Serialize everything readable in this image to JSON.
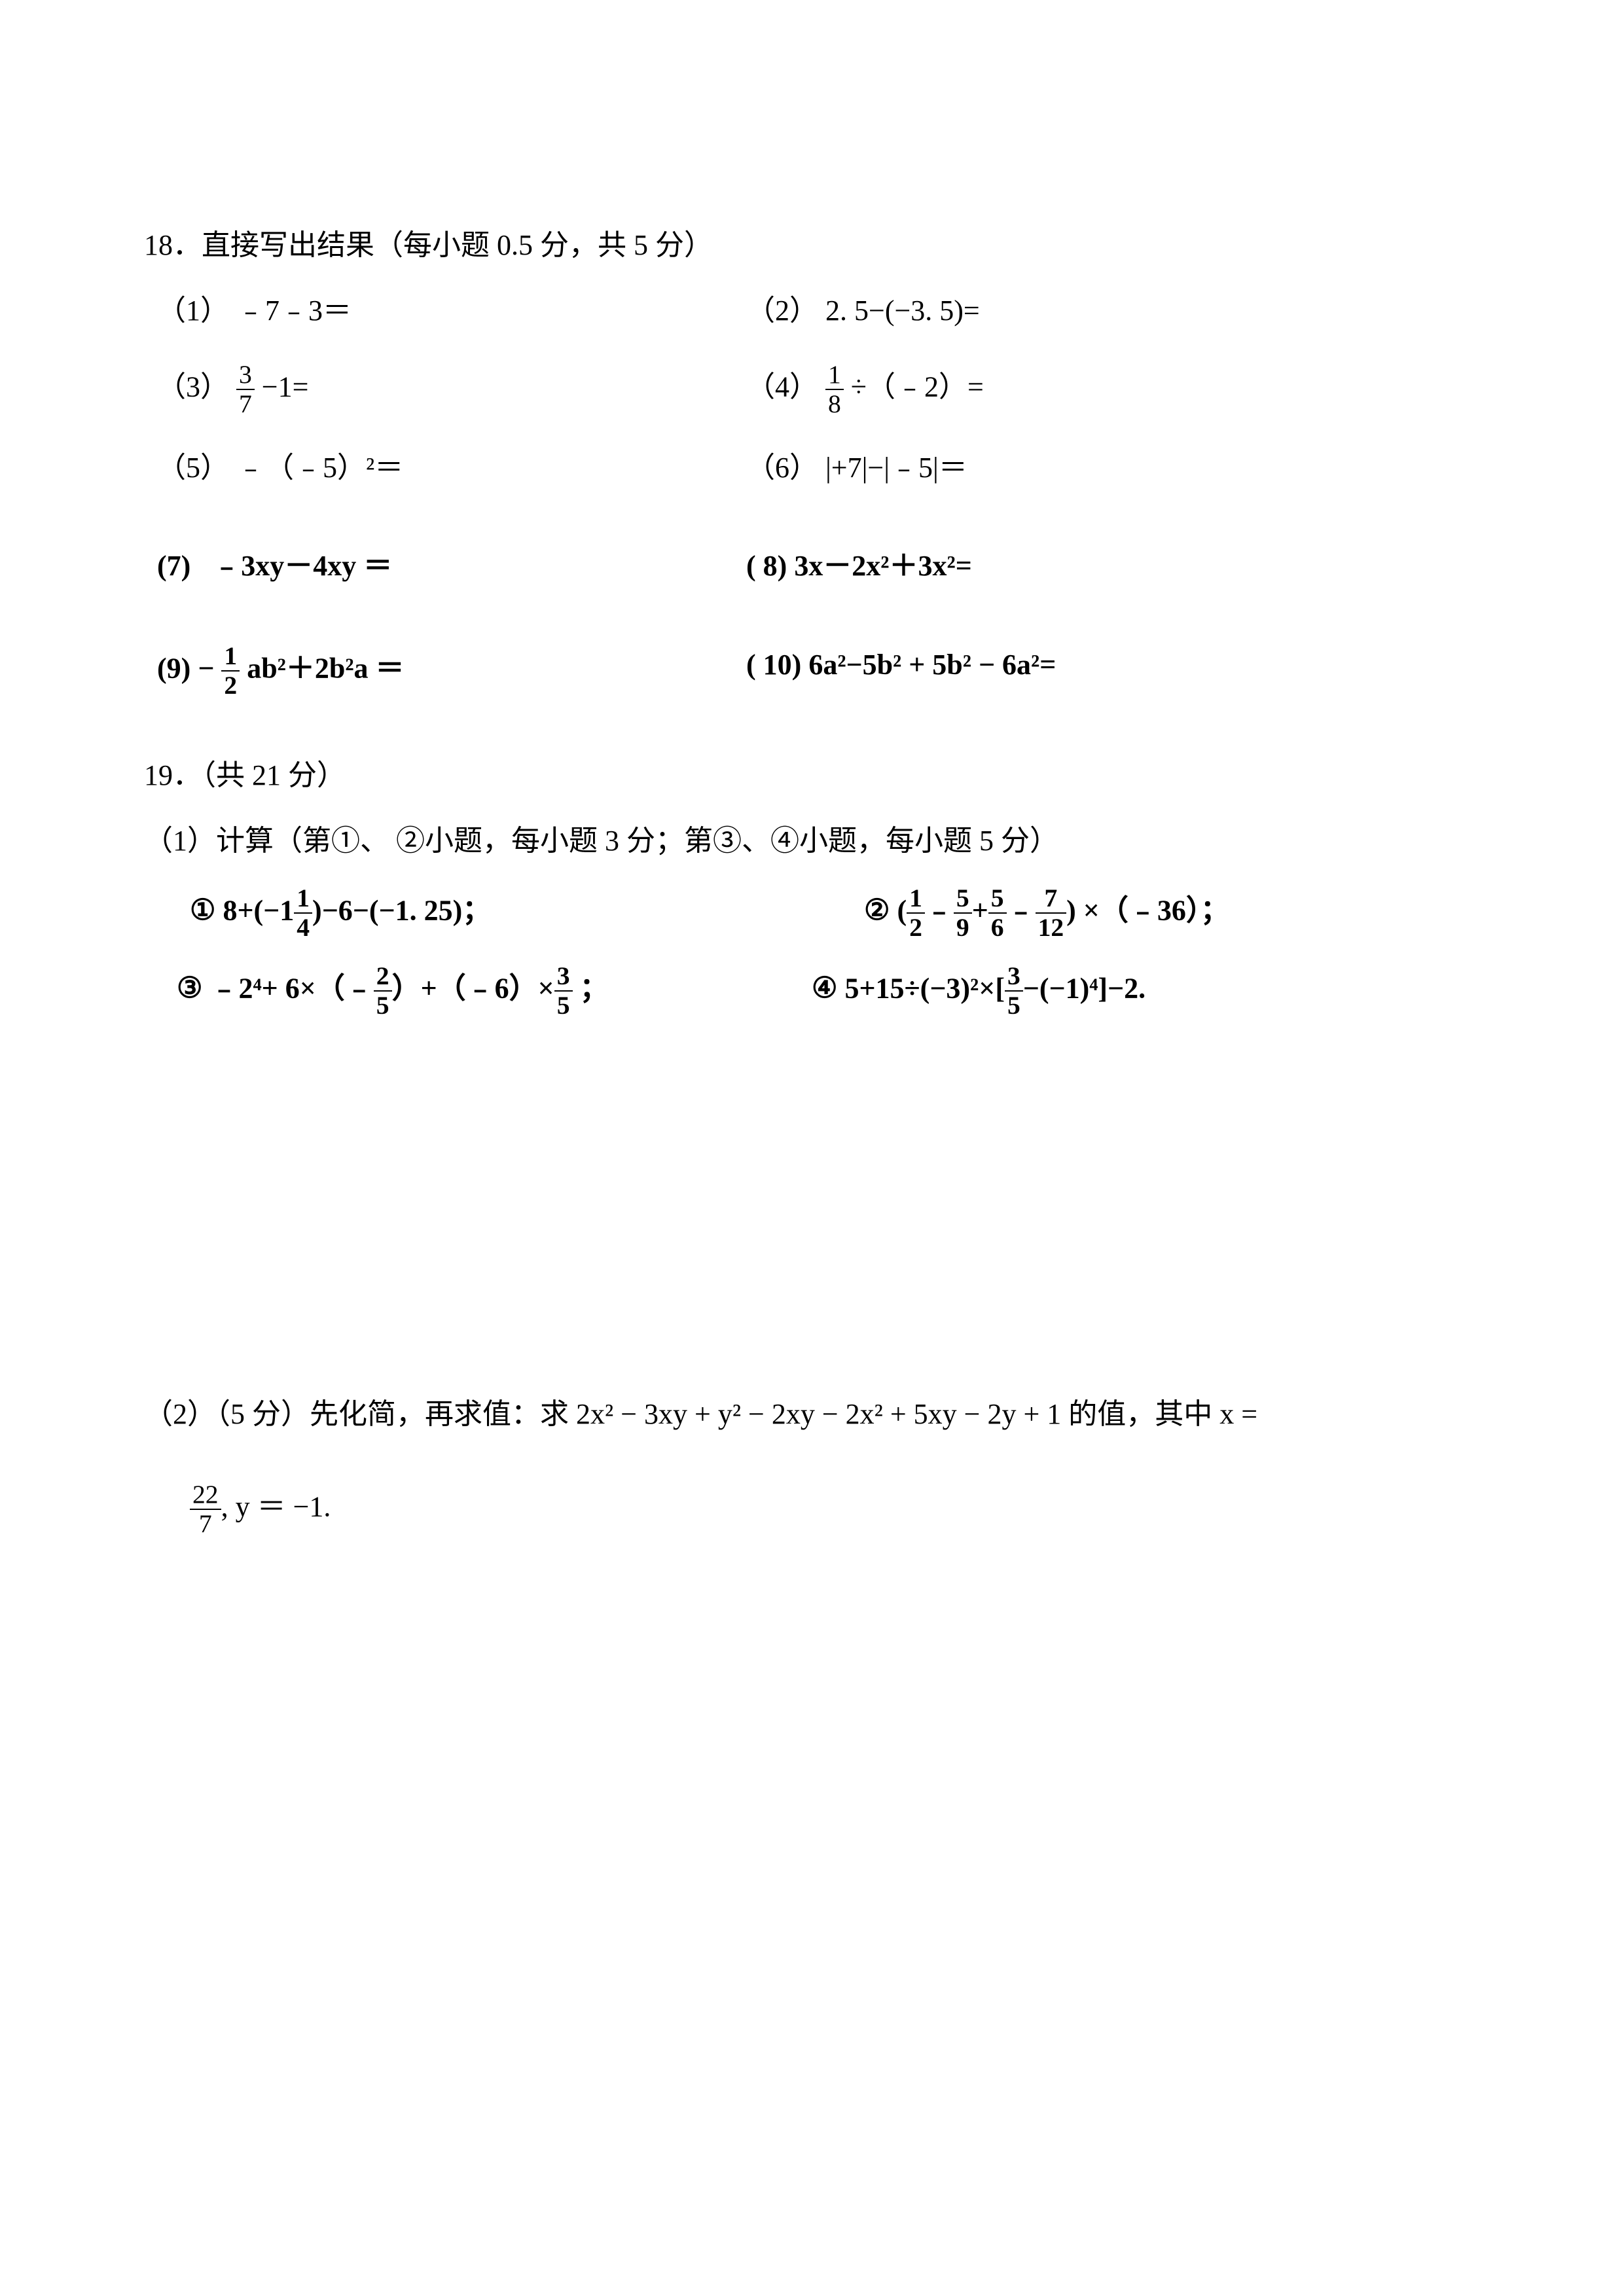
{
  "q18": {
    "header": "18．直接写出结果（每小题 0.5 分，共 5 分）",
    "items": [
      {
        "num": "（1）",
        "expr": "﹣7﹣3＝"
      },
      {
        "num": "（2）",
        "expr": "2. 5−(−3. 5)="
      },
      {
        "num": "（3）",
        "expr_pre": "",
        "frac_n": "3",
        "frac_d": "7",
        "expr_post": "−1="
      },
      {
        "num": "（4）",
        "expr_pre": "",
        "frac_n": "1",
        "frac_d": "8",
        "expr_post": "÷（﹣2）="
      },
      {
        "num": "（5）",
        "expr": "﹣（﹣5）²＝"
      },
      {
        "num": "（6）",
        "expr": "|+7|−|﹣5|＝"
      },
      {
        "num": "(7)",
        "expr": "﹣3xy－4xy ＝"
      },
      {
        "num": "( 8)",
        "expr": "3x－2x²＋3x²="
      },
      {
        "num": "(9)",
        "expr_pre": "−",
        "frac_n": "1",
        "frac_d": "2",
        "expr_post": "ab²＋2b²a ＝"
      },
      {
        "num": "( 10)",
        "expr": "6a²−5b² + 5b² − 6a²="
      }
    ]
  },
  "q19": {
    "header": "19．（共 21 分）",
    "part1_header": "（1）计算（第①、 ②小题，每小题 3 分；第③、④小题，每小题 5 分）",
    "item1": {
      "label": "①",
      "pre": "8+(−1",
      "frac_n": "1",
      "frac_d": "4",
      "post": ")−6−(−1. 25)；"
    },
    "item2": {
      "label": "②",
      "pre": "(",
      "f1_n": "1",
      "f1_d": "2",
      "m1": "﹣",
      "f2_n": "5",
      "f2_d": "9",
      "m2": "+",
      "f3_n": "5",
      "f3_d": "6",
      "m3": "﹣",
      "f4_n": "7",
      "f4_d": "12",
      "post": ") ×（﹣36）；"
    },
    "item3": {
      "label": "③",
      "pre": "﹣2⁴+ 6×（﹣",
      "f1_n": "2",
      "f1_d": "5",
      "mid": "）+（﹣6）×",
      "f2_n": "3",
      "f2_d": "5",
      "post": " ；"
    },
    "item4": {
      "label": "④",
      "pre": "5+15÷(−3)²×[",
      "f1_n": "3",
      "f1_d": "5",
      "post": "−(−1)⁴]−2."
    },
    "part2_header": "（2）（5 分）先化简，再求值：求 2x² − 3xy + y² − 2xy − 2x² + 5xy − 2y + 1 的值，其中 x =",
    "given_pre": "",
    "given_f_n": "22",
    "given_f_d": "7",
    "given_post": ", y ＝ −1."
  }
}
